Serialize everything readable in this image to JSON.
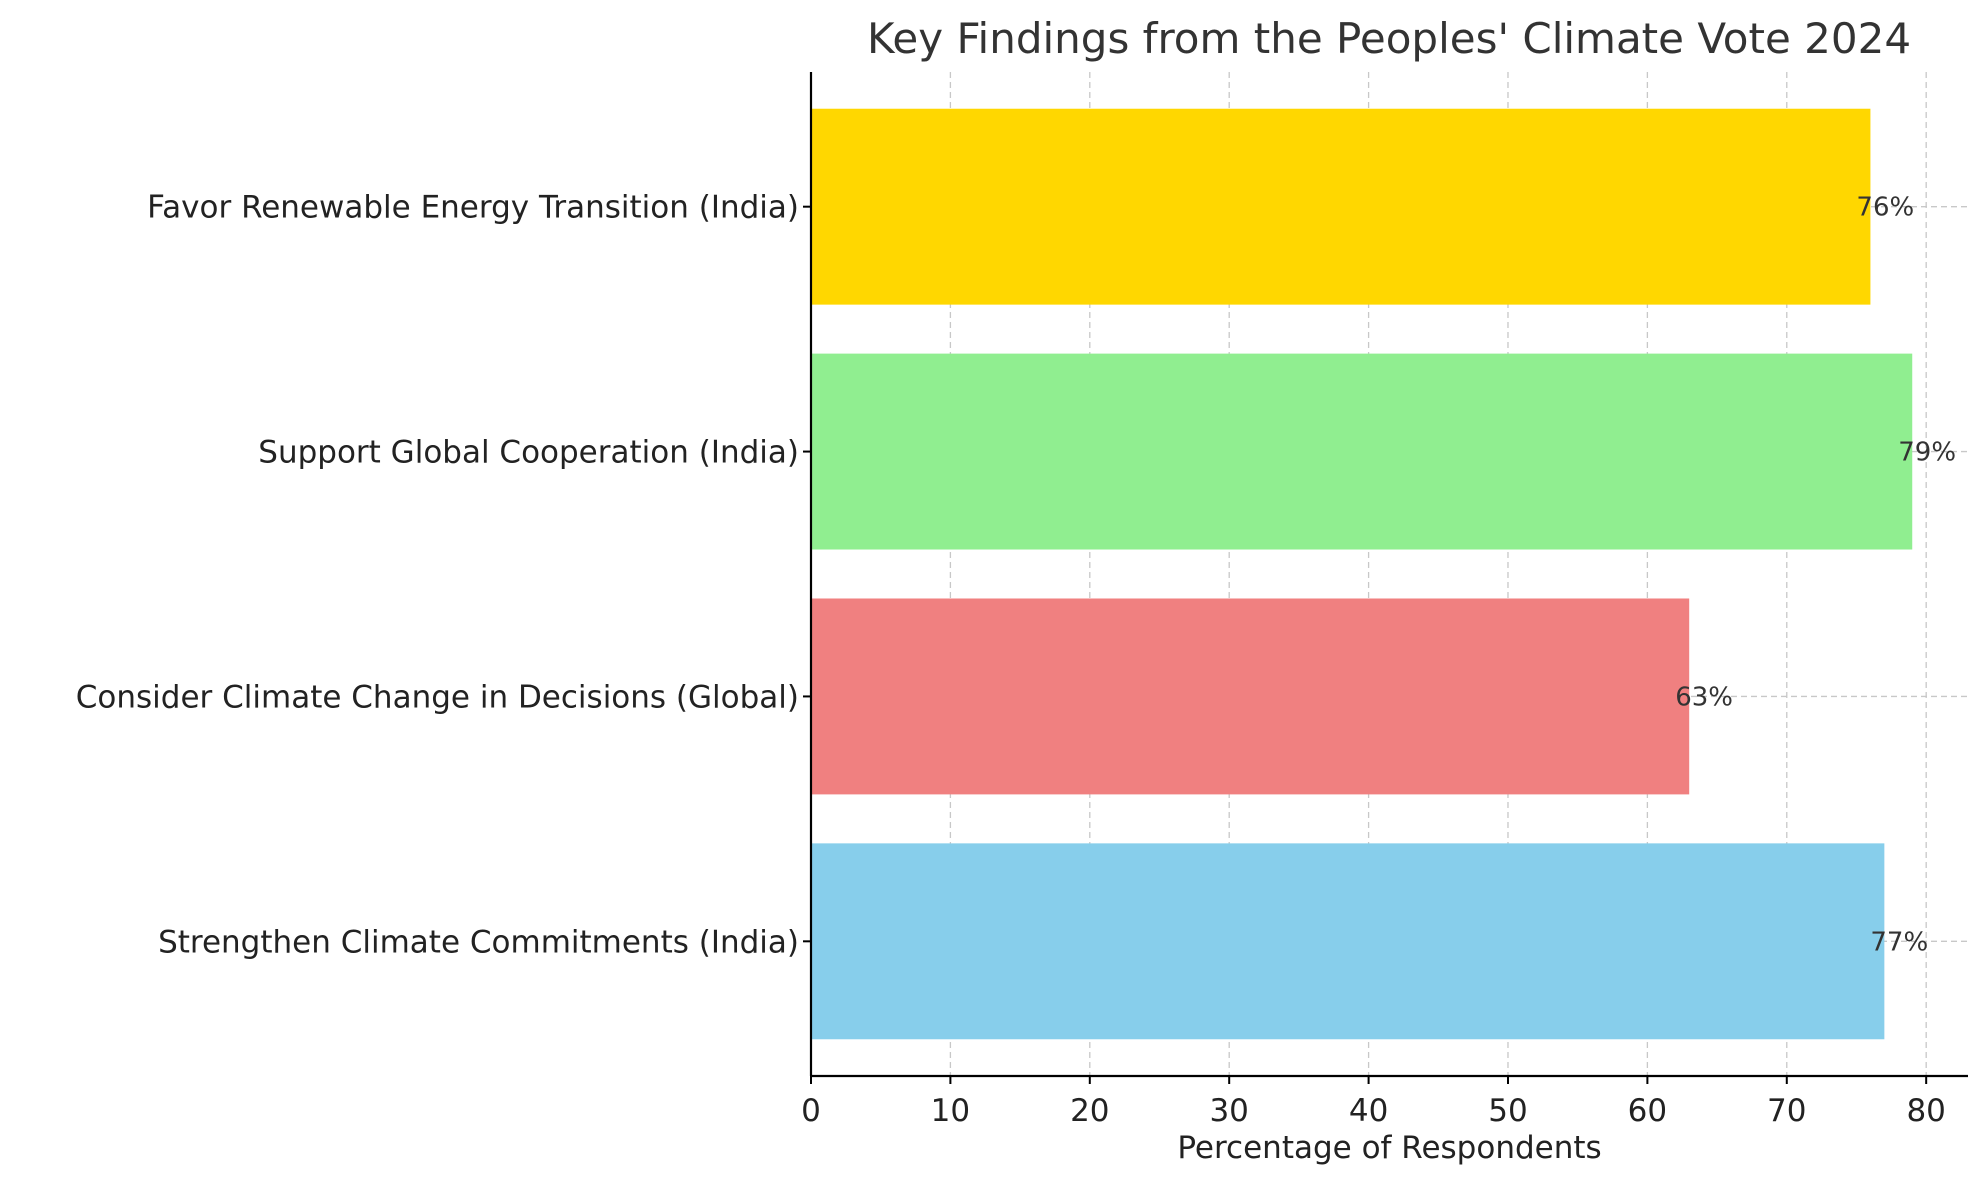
{
  "chart_data": {
    "type": "bar",
    "orientation": "horizontal",
    "title": "Key Findings from the Peoples' Climate Vote 2024",
    "xlabel": "Percentage of Respondents",
    "ylabel": "",
    "xlim": [
      0,
      83
    ],
    "xticks": [
      0,
      10,
      20,
      30,
      40,
      50,
      60,
      70,
      80
    ],
    "grid": true,
    "categories": [
      "Strengthen Climate Commitments (India)",
      "Consider Climate Change in Decisions (Global)",
      "Support Global Cooperation (India)",
      "Favor Renewable Energy Transition (India)"
    ],
    "values": [
      77,
      63,
      79,
      76
    ],
    "data_labels": [
      "77%",
      "63%",
      "79%",
      "76%"
    ],
    "colors": [
      "#87CEEB",
      "#F08080",
      "#90EE90",
      "#FFD700"
    ]
  }
}
